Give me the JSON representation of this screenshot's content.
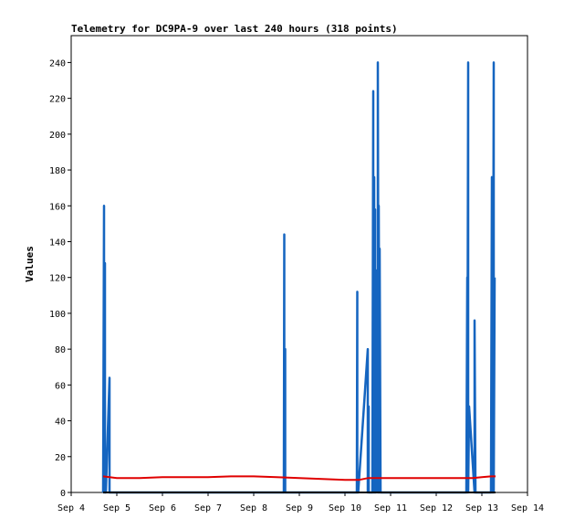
{
  "chart_data": {
    "type": "line",
    "title": "Telemetry for DC9PA-9 over last 240 hours (318 points)",
    "xlabel": "",
    "ylabel": "Values",
    "grid": false,
    "legend": "none",
    "x_ticks": [
      "Sep 4",
      "Sep 5",
      "Sep 6",
      "Sep 7",
      "Sep 8",
      "Sep 9",
      "Sep 10",
      "Sep 11",
      "Sep 12",
      "Sep 13",
      "Sep 14"
    ],
    "y_ticks": [
      0,
      20,
      40,
      60,
      80,
      100,
      120,
      140,
      160,
      180,
      200,
      220,
      240
    ],
    "xlim": [
      4.0,
      14.0
    ],
    "ylim": [
      0,
      255
    ],
    "series": [
      {
        "color": "#1565c0",
        "x": [
          4.7,
          4.72,
          4.72,
          4.74,
          4.74,
          4.76,
          4.84,
          4.84,
          4.86,
          8.66,
          8.67,
          8.67,
          8.69,
          8.69,
          8.71,
          10.26,
          10.27,
          10.27,
          10.29,
          10.5,
          10.5,
          10.52,
          10.52,
          10.54,
          10.6,
          10.62,
          10.62,
          10.64,
          10.64,
          10.66,
          10.66,
          10.68,
          10.68,
          10.7,
          10.72,
          10.72,
          10.74,
          10.74,
          10.76,
          10.76,
          10.78,
          12.66,
          12.68,
          12.68,
          12.7,
          12.7,
          12.72,
          12.84,
          12.84,
          12.86,
          13.2,
          13.22,
          13.22,
          13.24,
          13.24,
          13.26,
          13.26,
          13.28
        ],
        "values": [
          0,
          160,
          0,
          128,
          0,
          0,
          64,
          0,
          0,
          0,
          144,
          0,
          80,
          0,
          0,
          0,
          112,
          0,
          0,
          80,
          0,
          48,
          0,
          0,
          0,
          224,
          0,
          176,
          0,
          158,
          0,
          124,
          0,
          88,
          0,
          240,
          0,
          160,
          0,
          136,
          0,
          0,
          120,
          0,
          240,
          0,
          48,
          0,
          96,
          0,
          0,
          176,
          0,
          120,
          0,
          240,
          0,
          120
        ]
      },
      {
        "color": "#e00000",
        "x": [
          4.7,
          5.0,
          5.5,
          6.0,
          6.5,
          7.0,
          7.5,
          8.0,
          8.5,
          9.0,
          9.5,
          10.0,
          10.3,
          10.5,
          11.0,
          11.5,
          12.0,
          12.5,
          12.8,
          13.0,
          13.2,
          13.3
        ],
        "values": [
          9,
          8,
          8,
          8.5,
          8.5,
          8.5,
          9,
          9,
          8.5,
          8,
          7.5,
          7,
          7,
          8,
          8,
          8,
          8,
          8,
          8,
          8.5,
          9,
          9
        ]
      },
      {
        "color": "#000000",
        "x": [
          4.7,
          13.3
        ],
        "values": [
          0,
          0
        ]
      }
    ]
  }
}
